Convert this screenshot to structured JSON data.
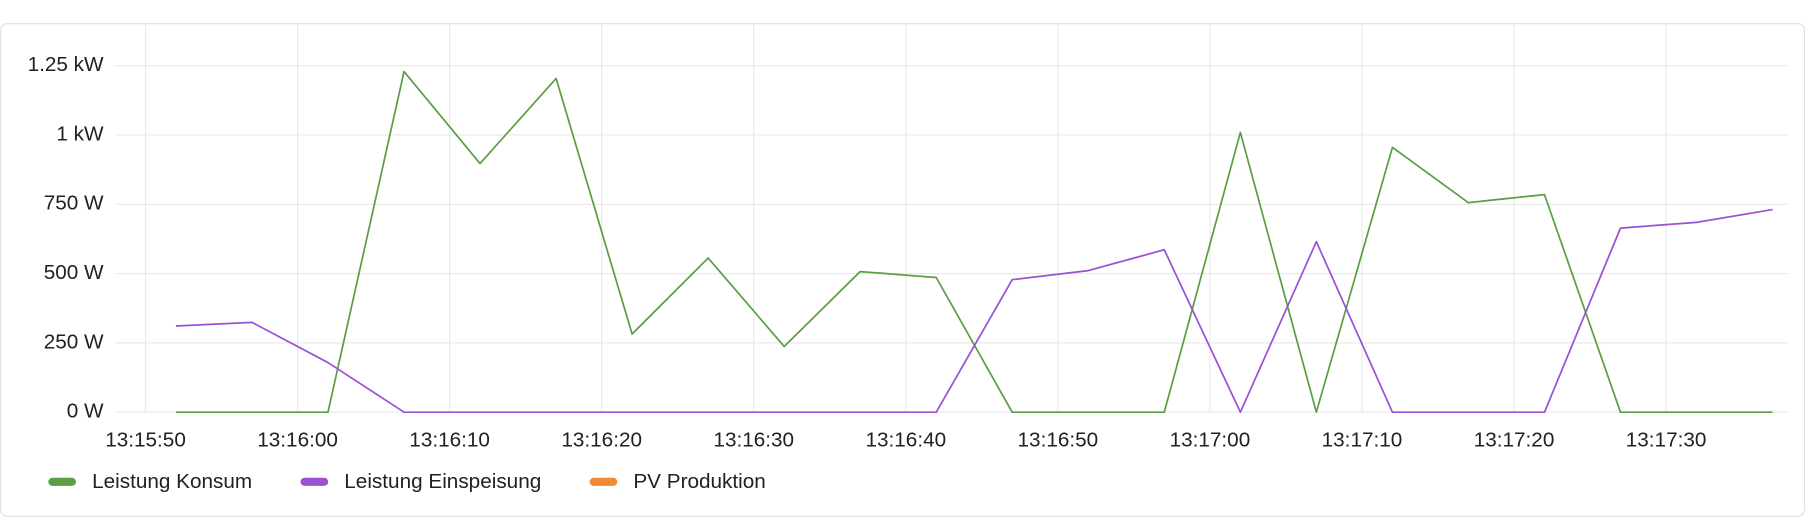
{
  "chart_data": {
    "type": "line",
    "x": [
      "13:15:52",
      "13:15:57",
      "13:16:02",
      "13:16:07",
      "13:16:12",
      "13:16:17",
      "13:16:22",
      "13:16:27",
      "13:16:32",
      "13:16:37",
      "13:16:42",
      "13:16:47",
      "13:16:52",
      "13:16:57",
      "13:17:02",
      "13:17:07",
      "13:17:12",
      "13:17:17",
      "13:17:22",
      "13:17:27",
      "13:17:32",
      "13:17:37"
    ],
    "series": [
      {
        "name": "Leistung Konsum",
        "color": "#5a9e46",
        "values": [
          0,
          0,
          0,
          1229,
          897,
          1204,
          282,
          556,
          237,
          507,
          486,
          0,
          0,
          0,
          1009,
          0,
          955,
          756,
          785,
          0,
          0,
          0
        ]
      },
      {
        "name": "Leistung Einspeisung",
        "color": "#9b51d4",
        "values": [
          311,
          324,
          179,
          0,
          0,
          0,
          0,
          0,
          0,
          0,
          0,
          478,
          511,
          586,
          0,
          615,
          0,
          0,
          0,
          664,
          685,
          731
        ]
      },
      {
        "name": "PV Produktion",
        "color": "#f08a35",
        "hidden": true,
        "values": [
          null,
          null,
          null,
          null,
          null,
          null,
          null,
          null,
          null,
          null,
          null,
          null,
          null,
          null,
          null,
          null,
          null,
          null,
          null,
          null,
          null,
          null
        ]
      }
    ],
    "xlim": [
      "13:15:48",
      "13:17:38"
    ],
    "xticks": [
      "13:15:50",
      "13:16:00",
      "13:16:10",
      "13:16:20",
      "13:16:30",
      "13:16:40",
      "13:16:50",
      "13:17:00",
      "13:17:10",
      "13:17:20",
      "13:17:30"
    ],
    "ylim": [
      0,
      1250
    ],
    "yticks": [
      {
        "value": 0,
        "label": "0 W"
      },
      {
        "value": 250,
        "label": "250 W"
      },
      {
        "value": 500,
        "label": "500 W"
      },
      {
        "value": 750,
        "label": "750 W"
      },
      {
        "value": 1000,
        "label": "1 kW"
      },
      {
        "value": 1250,
        "label": "1.25 kW"
      }
    ],
    "grid": true
  }
}
